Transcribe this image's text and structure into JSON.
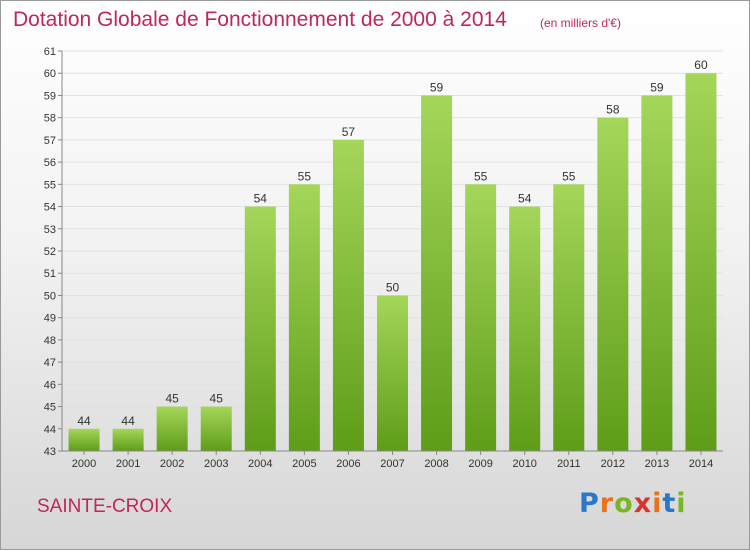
{
  "header": {
    "title": "Dotation Globale de Fonctionnement de 2000 à 2014",
    "subtitle": "(en milliers d'€)"
  },
  "footer": {
    "commune": "SAINTE-CROIX",
    "logo_text": "Proxiti",
    "logo_colors": [
      "#2b78c9",
      "#e8731a",
      "#7ab623",
      "#d9342b",
      "#e8731a",
      "#2b78c9",
      "#7ab623"
    ]
  },
  "colors": {
    "title": "#c0265e",
    "bar_light": "#a4d65a",
    "bar_dark": "#5e9d18",
    "axis": "#888888",
    "grid": "#e2e2e2",
    "text": "#333333"
  },
  "chart_data": {
    "type": "bar",
    "title": "Dotation Globale de Fonctionnement de 2000 à 2014",
    "subtitle": "(en milliers d'€)",
    "categories": [
      "2000",
      "2001",
      "2002",
      "2003",
      "2004",
      "2005",
      "2006",
      "2007",
      "2008",
      "2009",
      "2010",
      "2011",
      "2012",
      "2013",
      "2014"
    ],
    "values": [
      44,
      44,
      45,
      45,
      54,
      55,
      57,
      50,
      59,
      55,
      54,
      55,
      58,
      59,
      60
    ],
    "xlabel": "",
    "ylabel": "",
    "ylim": [
      43,
      61
    ],
    "yticks": [
      43,
      44,
      45,
      46,
      47,
      48,
      49,
      50,
      51,
      52,
      53,
      54,
      55,
      56,
      57,
      58,
      59,
      60,
      61
    ],
    "grid": true,
    "legend": "none"
  }
}
